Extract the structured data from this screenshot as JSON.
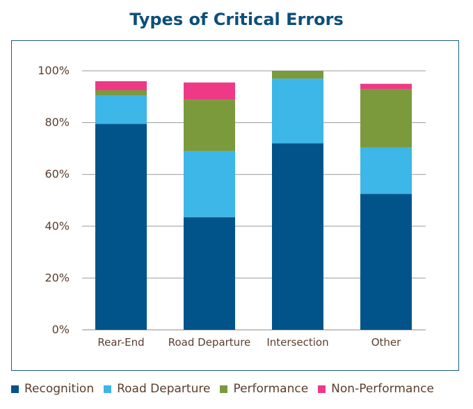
{
  "chart_data": {
    "type": "bar",
    "stacked": true,
    "title": "Types of Critical Errors",
    "xlabel": "",
    "ylabel": "",
    "ylim": [
      0,
      100
    ],
    "yticks": [
      "0%",
      "20%",
      "40%",
      "60%",
      "80%",
      "100%"
    ],
    "grid": true,
    "legend_position": "bottom",
    "categories": [
      "Rear-End",
      "Road Departure",
      "Intersection",
      "Other"
    ],
    "series": [
      {
        "name": "Recognition",
        "color": "#00548a",
        "values": [
          79.5,
          43.5,
          72,
          52.5
        ]
      },
      {
        "name": "Road Departure",
        "color": "#3db6e8",
        "values": [
          11,
          25.5,
          25,
          18
        ]
      },
      {
        "name": "Performance",
        "color": "#7a9a3c",
        "values": [
          2,
          20,
          3,
          22.5
        ]
      },
      {
        "name": "Non-Performance",
        "color": "#ee3a86",
        "values": [
          3.5,
          6.5,
          0,
          2
        ]
      }
    ]
  }
}
